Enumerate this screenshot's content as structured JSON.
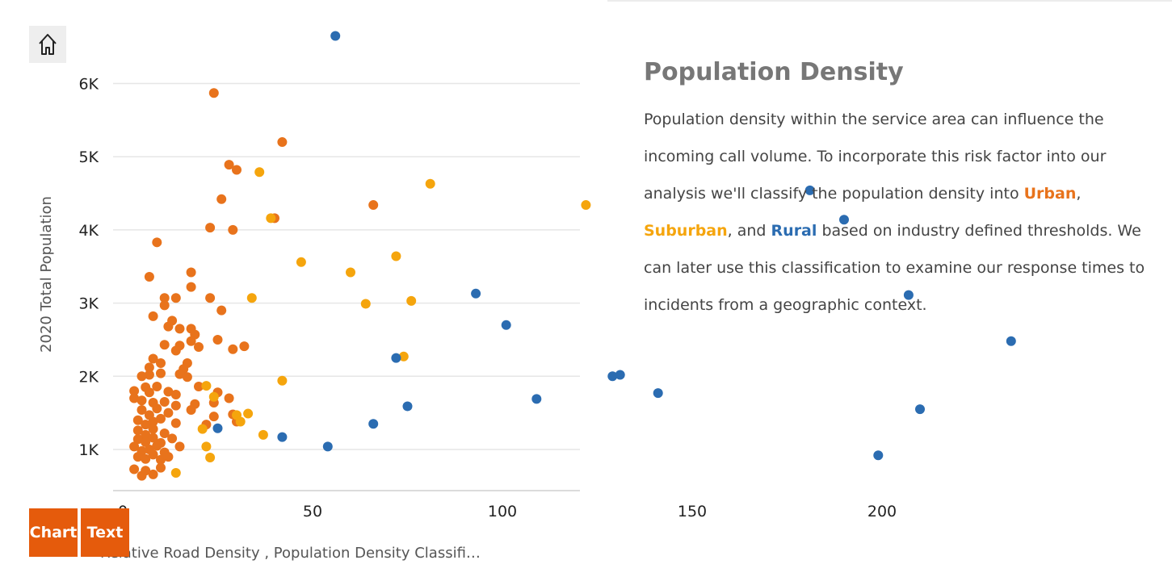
{
  "colors": {
    "urban": "#e8731c",
    "suburban": "#f5a50d",
    "rural": "#2b6cb1",
    "button": "#e55b0c"
  },
  "home": {
    "icon": "home-icon"
  },
  "buttons": {
    "chart": "Chart",
    "text": "Text"
  },
  "x_axis_title": "Relative Road Density , Population Density Classifi…",
  "story": {
    "title": "Population Density",
    "p1": "Population density within the service area can influence the incoming call volume. To incorporate this risk factor into our analysis we'll classify the population density into ",
    "urban": "Urban",
    "comma": ",",
    "suburban": "Suburban",
    "and": ", and ",
    "rural": "Rural",
    "p2": " based on industry defined thresholds. We can later use this classification to examine our response times to incidents from a geographic context."
  },
  "chart_data": {
    "type": "scatter",
    "title": "",
    "xlabel": "Relative Road Density , Population Density Classifi…",
    "ylabel": "2020 Total Population",
    "xlim": [
      -5,
      242
    ],
    "ylim": [
      500,
      6750
    ],
    "xticks": [
      0,
      50,
      100,
      150,
      200
    ],
    "xtick_labels": [
      "0",
      "50",
      "100",
      "150",
      "200"
    ],
    "yticks": [
      1000,
      2000,
      3000,
      4000,
      5000,
      6000
    ],
    "ytick_labels": [
      "1K",
      "2K",
      "3K",
      "4K",
      "5K",
      "6K"
    ],
    "grid": true,
    "series": [
      {
        "name": "Urban",
        "color": "#e8731c",
        "points": [
          [
            24,
            5870
          ],
          [
            42,
            5200
          ],
          [
            28,
            4890
          ],
          [
            30,
            4820
          ],
          [
            26,
            4420
          ],
          [
            40,
            4160
          ],
          [
            66,
            4340
          ],
          [
            23,
            4030
          ],
          [
            29,
            4000
          ],
          [
            9,
            3830
          ],
          [
            18,
            3420
          ],
          [
            7,
            3360
          ],
          [
            18,
            3220
          ],
          [
            11,
            3070
          ],
          [
            14,
            3070
          ],
          [
            11,
            2970
          ],
          [
            23,
            3070
          ],
          [
            26,
            2900
          ],
          [
            8,
            2820
          ],
          [
            13,
            2760
          ],
          [
            12,
            2680
          ],
          [
            15,
            2650
          ],
          [
            18,
            2650
          ],
          [
            19,
            2570
          ],
          [
            11,
            2430
          ],
          [
            15,
            2420
          ],
          [
            18,
            2480
          ],
          [
            20,
            2400
          ],
          [
            25,
            2500
          ],
          [
            29,
            2370
          ],
          [
            32,
            2410
          ],
          [
            14,
            2350
          ],
          [
            8,
            2240
          ],
          [
            10,
            2180
          ],
          [
            17,
            2180
          ],
          [
            7,
            2120
          ],
          [
            16,
            2100
          ],
          [
            7,
            2020
          ],
          [
            10,
            2040
          ],
          [
            15,
            2030
          ],
          [
            17,
            1990
          ],
          [
            5,
            2000
          ],
          [
            3,
            1800
          ],
          [
            6,
            1850
          ],
          [
            7,
            1780
          ],
          [
            9,
            1860
          ],
          [
            12,
            1790
          ],
          [
            14,
            1750
          ],
          [
            20,
            1860
          ],
          [
            25,
            1780
          ],
          [
            3,
            1700
          ],
          [
            5,
            1670
          ],
          [
            8,
            1640
          ],
          [
            11,
            1650
          ],
          [
            14,
            1600
          ],
          [
            19,
            1620
          ],
          [
            24,
            1640
          ],
          [
            28,
            1700
          ],
          [
            5,
            1540
          ],
          [
            7,
            1470
          ],
          [
            9,
            1560
          ],
          [
            12,
            1500
          ],
          [
            18,
            1540
          ],
          [
            24,
            1450
          ],
          [
            29,
            1480
          ],
          [
            4,
            1400
          ],
          [
            6,
            1340
          ],
          [
            8,
            1380
          ],
          [
            10,
            1420
          ],
          [
            14,
            1360
          ],
          [
            22,
            1340
          ],
          [
            30,
            1380
          ],
          [
            4,
            1260
          ],
          [
            6,
            1200
          ],
          [
            8,
            1280
          ],
          [
            11,
            1220
          ],
          [
            4,
            1140
          ],
          [
            6,
            1100
          ],
          [
            8,
            1160
          ],
          [
            10,
            1090
          ],
          [
            13,
            1150
          ],
          [
            3,
            1040
          ],
          [
            5,
            980
          ],
          [
            7,
            1000
          ],
          [
            9,
            1050
          ],
          [
            11,
            960
          ],
          [
            15,
            1040
          ],
          [
            4,
            900
          ],
          [
            6,
            870
          ],
          [
            8,
            930
          ],
          [
            10,
            860
          ],
          [
            12,
            900
          ],
          [
            3,
            730
          ],
          [
            5,
            640
          ],
          [
            6,
            710
          ],
          [
            8,
            660
          ],
          [
            10,
            750
          ]
        ]
      },
      {
        "name": "Suburban",
        "color": "#f5a50d",
        "points": [
          [
            36,
            4790
          ],
          [
            81,
            4630
          ],
          [
            122,
            4340
          ],
          [
            39,
            4160
          ],
          [
            72,
            3640
          ],
          [
            47,
            3560
          ],
          [
            60,
            3420
          ],
          [
            34,
            3070
          ],
          [
            64,
            2990
          ],
          [
            76,
            3030
          ],
          [
            74,
            2270
          ],
          [
            42,
            1940
          ],
          [
            22,
            1870
          ],
          [
            24,
            1720
          ],
          [
            33,
            1490
          ],
          [
            30,
            1470
          ],
          [
            31,
            1380
          ],
          [
            21,
            1280
          ],
          [
            37,
            1200
          ],
          [
            22,
            1040
          ],
          [
            23,
            890
          ],
          [
            14,
            680
          ]
        ]
      },
      {
        "name": "Rural",
        "color": "#2b6cb1",
        "points": [
          [
            56,
            6650
          ],
          [
            181,
            4540
          ],
          [
            190,
            4140
          ],
          [
            93,
            3130
          ],
          [
            207,
            3110
          ],
          [
            101,
            2700
          ],
          [
            234,
            2480
          ],
          [
            72,
            2250
          ],
          [
            129,
            2000
          ],
          [
            131,
            2020
          ],
          [
            141,
            1770
          ],
          [
            109,
            1690
          ],
          [
            75,
            1590
          ],
          [
            210,
            1550
          ],
          [
            66,
            1350
          ],
          [
            25,
            1290
          ],
          [
            42,
            1170
          ],
          [
            54,
            1040
          ],
          [
            199,
            920
          ]
        ]
      }
    ]
  }
}
